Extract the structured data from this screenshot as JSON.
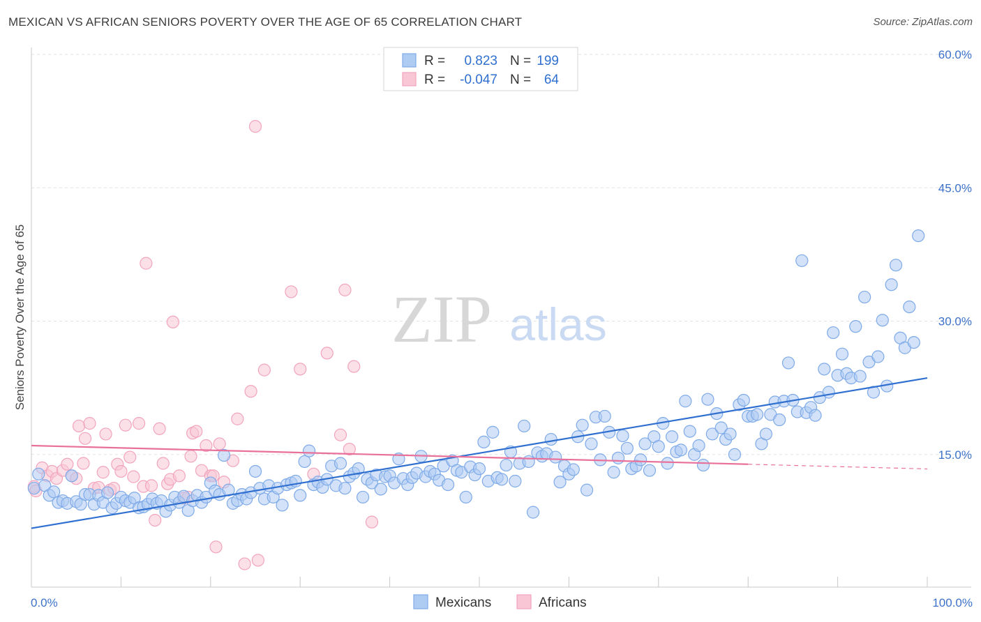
{
  "header": {
    "title": "MEXICAN VS AFRICAN SENIORS POVERTY OVER THE AGE OF 65 CORRELATION CHART",
    "source": "Source: ZipAtlas.com"
  },
  "watermark": {
    "zip": "ZIP",
    "atlas": "atlas"
  },
  "legend": {
    "rows": [
      {
        "r_label": "R =",
        "r_value": "0.823",
        "n_label": "N =",
        "n_value": "199",
        "color": "#7eaae8"
      },
      {
        "r_label": "R =",
        "r_value": "-0.047",
        "n_label": "N =",
        "n_value": "64",
        "color": "#f2a4bd"
      }
    ]
  },
  "colors": {
    "mexicans_fill": "#aecbf2",
    "mexicans_stroke": "#7eaae8",
    "mexicans_line": "#2f6fd0",
    "africans_fill": "#f8c6d5",
    "africans_stroke": "#f2a4bd",
    "africans_line": "#e8709a",
    "tick_label": "#3d72c9"
  },
  "chart_data": {
    "type": "scatter",
    "title": "MEXICAN VS AFRICAN SENIORS POVERTY OVER THE AGE OF 65 CORRELATION CHART",
    "xlabel": "",
    "ylabel": "Seniors Poverty Over the Age of 65",
    "xlim": [
      0,
      100
    ],
    "ylim": [
      0,
      60
    ],
    "x_tick_labels": [
      "0.0%",
      "100.0%"
    ],
    "y_ticks": [
      15,
      30,
      45,
      60
    ],
    "y_tick_labels": [
      "15.0%",
      "30.0%",
      "45.0%",
      "60.0%"
    ],
    "grid": true,
    "legend_position": "top-center",
    "series": [
      {
        "name": "Mexicans",
        "r": 0.823,
        "n": 199,
        "trend": {
          "x": [
            0,
            100
          ],
          "y": [
            6.7,
            23.6
          ]
        },
        "points": [
          [
            0.3,
            11.2
          ],
          [
            0.8,
            12.8
          ],
          [
            1.5,
            11.5
          ],
          [
            2.0,
            10.4
          ],
          [
            2.5,
            10.8
          ],
          [
            3.0,
            9.6
          ],
          [
            3.5,
            9.8
          ],
          [
            4.0,
            9.5
          ],
          [
            4.5,
            12.6
          ],
          [
            5.0,
            9.7
          ],
          [
            5.5,
            9.4
          ],
          [
            6.0,
            10.5
          ],
          [
            6.5,
            10.5
          ],
          [
            7.0,
            9.4
          ],
          [
            7.5,
            10.4
          ],
          [
            8.0,
            9.6
          ],
          [
            8.5,
            10.7
          ],
          [
            9.0,
            9.0
          ],
          [
            9.5,
            9.5
          ],
          [
            10.0,
            10.2
          ],
          [
            10.5,
            9.8
          ],
          [
            11.0,
            9.6
          ],
          [
            11.5,
            10.1
          ],
          [
            12.0,
            9.0
          ],
          [
            12.5,
            9.1
          ],
          [
            13.0,
            9.4
          ],
          [
            13.5,
            10.0
          ],
          [
            14.0,
            9.5
          ],
          [
            14.5,
            9.8
          ],
          [
            15.0,
            8.6
          ],
          [
            15.5,
            9.3
          ],
          [
            16.0,
            10.2
          ],
          [
            16.5,
            9.6
          ],
          [
            17.0,
            10.3
          ],
          [
            17.5,
            8.7
          ],
          [
            18.0,
            9.8
          ],
          [
            18.5,
            10.4
          ],
          [
            19.0,
            9.6
          ],
          [
            19.5,
            10.2
          ],
          [
            20.0,
            11.8
          ],
          [
            20.5,
            10.9
          ],
          [
            21.0,
            10.5
          ],
          [
            21.5,
            14.9
          ],
          [
            22.0,
            11.0
          ],
          [
            22.5,
            9.5
          ],
          [
            23.0,
            9.8
          ],
          [
            23.5,
            10.5
          ],
          [
            24.0,
            10.0
          ],
          [
            24.5,
            10.7
          ],
          [
            25.0,
            13.1
          ],
          [
            25.5,
            11.2
          ],
          [
            26.0,
            10.0
          ],
          [
            26.5,
            11.5
          ],
          [
            27.0,
            10.2
          ],
          [
            27.5,
            11.2
          ],
          [
            28.0,
            9.3
          ],
          [
            28.5,
            11.6
          ],
          [
            29.0,
            11.8
          ],
          [
            29.5,
            12.0
          ],
          [
            30.0,
            10.4
          ],
          [
            30.5,
            14.2
          ],
          [
            31.0,
            15.4
          ],
          [
            31.5,
            11.6
          ],
          [
            32.0,
            11.9
          ],
          [
            32.5,
            11.3
          ],
          [
            33.0,
            12.2
          ],
          [
            33.5,
            13.7
          ],
          [
            34.0,
            11.5
          ],
          [
            34.5,
            14.0
          ],
          [
            35.0,
            11.2
          ],
          [
            35.5,
            12.5
          ],
          [
            36.0,
            12.9
          ],
          [
            36.5,
            13.4
          ],
          [
            37.0,
            10.2
          ],
          [
            37.5,
            12.2
          ],
          [
            38.0,
            11.8
          ],
          [
            38.5,
            12.7
          ],
          [
            39.0,
            11.1
          ],
          [
            39.5,
            12.5
          ],
          [
            40.0,
            12.6
          ],
          [
            40.5,
            11.8
          ],
          [
            41.0,
            14.5
          ],
          [
            41.5,
            12.3
          ],
          [
            42.0,
            11.6
          ],
          [
            42.5,
            12.4
          ],
          [
            43.0,
            12.9
          ],
          [
            43.5,
            14.8
          ],
          [
            44.0,
            12.5
          ],
          [
            44.5,
            13.1
          ],
          [
            45.0,
            12.8
          ],
          [
            45.5,
            12.1
          ],
          [
            46.0,
            13.7
          ],
          [
            46.5,
            11.6
          ],
          [
            47.0,
            14.3
          ],
          [
            47.5,
            13.2
          ],
          [
            48.0,
            13.0
          ],
          [
            48.5,
            10.2
          ],
          [
            49.0,
            13.6
          ],
          [
            49.5,
            12.7
          ],
          [
            50.0,
            13.4
          ],
          [
            50.5,
            16.4
          ],
          [
            51.0,
            12.0
          ],
          [
            51.5,
            17.5
          ],
          [
            52.0,
            12.4
          ],
          [
            52.5,
            12.2
          ],
          [
            53.0,
            13.8
          ],
          [
            53.5,
            15.3
          ],
          [
            54.0,
            12.0
          ],
          [
            54.5,
            14.0
          ],
          [
            55.0,
            18.2
          ],
          [
            55.5,
            14.2
          ],
          [
            56.0,
            8.5
          ],
          [
            56.5,
            15.2
          ],
          [
            57.0,
            14.8
          ],
          [
            57.5,
            15.1
          ],
          [
            58.0,
            16.7
          ],
          [
            58.5,
            14.7
          ],
          [
            59.0,
            11.9
          ],
          [
            59.5,
            13.7
          ],
          [
            60.0,
            12.8
          ],
          [
            60.5,
            13.3
          ],
          [
            61.0,
            17.0
          ],
          [
            61.5,
            18.3
          ],
          [
            62.0,
            11.0
          ],
          [
            62.5,
            16.2
          ],
          [
            63.0,
            19.2
          ],
          [
            63.5,
            14.4
          ],
          [
            64.0,
            19.3
          ],
          [
            64.5,
            17.5
          ],
          [
            65.0,
            13.0
          ],
          [
            65.5,
            14.6
          ],
          [
            66.0,
            17.1
          ],
          [
            66.5,
            15.7
          ],
          [
            67.0,
            13.4
          ],
          [
            67.5,
            13.7
          ],
          [
            68.0,
            14.4
          ],
          [
            68.5,
            16.2
          ],
          [
            69.0,
            13.2
          ],
          [
            69.5,
            17.0
          ],
          [
            70.0,
            15.9
          ],
          [
            70.5,
            18.5
          ],
          [
            71.0,
            14.0
          ],
          [
            71.5,
            17.0
          ],
          [
            72.0,
            15.3
          ],
          [
            72.5,
            15.5
          ],
          [
            73.0,
            21.0
          ],
          [
            73.5,
            17.6
          ],
          [
            74.0,
            15.0
          ],
          [
            74.5,
            16.0
          ],
          [
            75.0,
            13.8
          ],
          [
            75.5,
            21.2
          ],
          [
            76.0,
            17.3
          ],
          [
            76.5,
            19.6
          ],
          [
            77.0,
            18.0
          ],
          [
            77.5,
            16.7
          ],
          [
            78.0,
            17.3
          ],
          [
            78.5,
            15.0
          ],
          [
            79.0,
            20.6
          ],
          [
            79.5,
            21.1
          ],
          [
            80.0,
            19.3
          ],
          [
            80.5,
            19.3
          ],
          [
            81.0,
            19.5
          ],
          [
            81.5,
            16.2
          ],
          [
            82.0,
            17.3
          ],
          [
            82.5,
            19.5
          ],
          [
            83.0,
            20.9
          ],
          [
            83.5,
            18.9
          ],
          [
            84.0,
            21.0
          ],
          [
            84.5,
            25.3
          ],
          [
            85.0,
            21.1
          ],
          [
            85.5,
            19.8
          ],
          [
            86.0,
            36.8
          ],
          [
            86.5,
            19.7
          ],
          [
            87.0,
            20.3
          ],
          [
            87.5,
            19.4
          ],
          [
            88.0,
            21.4
          ],
          [
            88.5,
            24.6
          ],
          [
            89.0,
            22.0
          ],
          [
            89.5,
            28.7
          ],
          [
            90.0,
            23.9
          ],
          [
            90.5,
            26.3
          ],
          [
            91.0,
            24.1
          ],
          [
            91.5,
            23.6
          ],
          [
            92.0,
            29.4
          ],
          [
            92.5,
            23.8
          ],
          [
            93.0,
            32.7
          ],
          [
            93.5,
            25.4
          ],
          [
            94.0,
            22.0
          ],
          [
            94.5,
            26.0
          ],
          [
            95.0,
            30.1
          ],
          [
            95.5,
            22.7
          ],
          [
            96.0,
            34.1
          ],
          [
            96.5,
            36.3
          ],
          [
            97.0,
            28.1
          ],
          [
            97.5,
            27.0
          ],
          [
            98.0,
            31.6
          ],
          [
            98.5,
            27.6
          ],
          [
            99.0,
            39.6
          ]
        ]
      },
      {
        "name": "Africans",
        "r": -0.047,
        "n": 64,
        "trend": {
          "x": [
            0,
            80
          ],
          "y": [
            16.0,
            13.9
          ]
        },
        "points": [
          [
            0.3,
            11.4
          ],
          [
            0.5,
            10.9
          ],
          [
            1.2,
            13.5
          ],
          [
            1.8,
            12.6
          ],
          [
            2.3,
            13.1
          ],
          [
            2.8,
            12.3
          ],
          [
            3.5,
            13.2
          ],
          [
            4.0,
            13.9
          ],
          [
            4.5,
            12.6
          ],
          [
            5.0,
            12.3
          ],
          [
            5.3,
            18.2
          ],
          [
            5.8,
            14.0
          ],
          [
            6.0,
            16.8
          ],
          [
            6.5,
            18.5
          ],
          [
            7.0,
            11.2
          ],
          [
            7.5,
            11.3
          ],
          [
            8.0,
            13.0
          ],
          [
            8.3,
            17.3
          ],
          [
            8.8,
            11.0
          ],
          [
            9.2,
            11.2
          ],
          [
            9.6,
            13.9
          ],
          [
            10.0,
            13.1
          ],
          [
            10.5,
            18.3
          ],
          [
            11.0,
            14.7
          ],
          [
            11.4,
            12.5
          ],
          [
            12.0,
            18.5
          ],
          [
            12.5,
            11.4
          ],
          [
            12.8,
            36.5
          ],
          [
            13.4,
            11.5
          ],
          [
            13.8,
            7.6
          ],
          [
            14.3,
            17.9
          ],
          [
            14.7,
            14.0
          ],
          [
            15.2,
            11.7
          ],
          [
            15.5,
            12.2
          ],
          [
            15.8,
            29.9
          ],
          [
            16.5,
            12.6
          ],
          [
            17.0,
            10.1
          ],
          [
            17.5,
            10.2
          ],
          [
            17.8,
            14.8
          ],
          [
            18.0,
            17.4
          ],
          [
            18.4,
            17.6
          ],
          [
            19.0,
            13.2
          ],
          [
            19.5,
            16.0
          ],
          [
            20.0,
            12.6
          ],
          [
            20.3,
            12.6
          ],
          [
            20.6,
            4.6
          ],
          [
            21.0,
            16.2
          ],
          [
            21.5,
            11.9
          ],
          [
            22.5,
            14.3
          ],
          [
            23.0,
            19.0
          ],
          [
            23.8,
            2.7
          ],
          [
            24.5,
            22.1
          ],
          [
            25.0,
            51.9
          ],
          [
            25.3,
            3.1
          ],
          [
            26.0,
            24.5
          ],
          [
            29.0,
            33.3
          ],
          [
            30.0,
            24.6
          ],
          [
            31.5,
            12.8
          ],
          [
            33.0,
            26.4
          ],
          [
            34.5,
            17.2
          ],
          [
            35.0,
            33.5
          ],
          [
            35.5,
            15.6
          ],
          [
            36.0,
            24.9
          ],
          [
            38.0,
            7.4
          ]
        ]
      }
    ]
  },
  "bottom_legend": {
    "items": [
      "Mexicans",
      "Africans"
    ]
  }
}
